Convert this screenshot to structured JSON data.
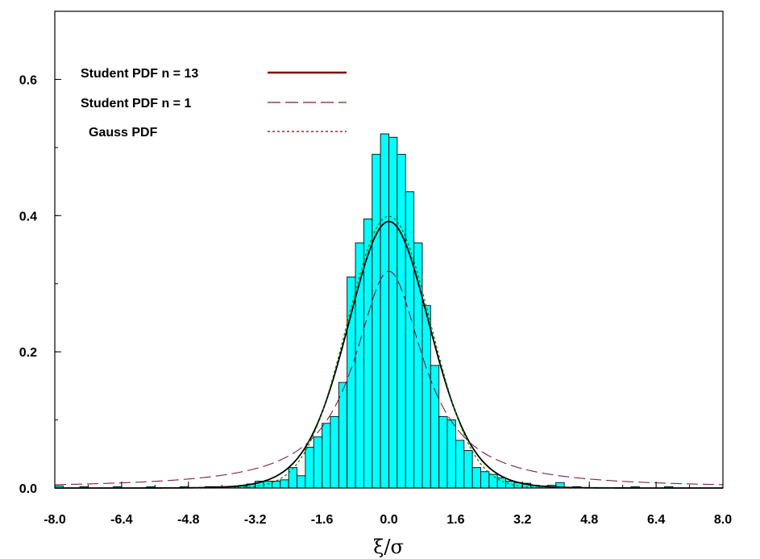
{
  "chart_data": {
    "type": "bar",
    "title": "",
    "xlabel": "ξ/σ",
    "ylabel": "",
    "xlim": [
      -8.0,
      8.0
    ],
    "ylim": [
      0.0,
      0.7
    ],
    "x_ticks": [
      "-8.0",
      "-6.4",
      "-4.8",
      "-3.2",
      "-1.6",
      "0.0",
      "1.6",
      "3.2",
      "4.8",
      "6.4",
      "8.0"
    ],
    "y_ticks": [
      "0.0",
      "0.2",
      "0.4",
      "0.6"
    ],
    "grid": false,
    "legend_position": "top-left",
    "histogram": {
      "color": "#00ffff",
      "bin_width": 0.2,
      "bin_left_edges": [
        -8.0,
        -7.4,
        -6.6,
        -5.8,
        -5.0,
        -4.4,
        -4.2,
        -4.0,
        -3.8,
        -3.6,
        -3.4,
        -3.2,
        -3.0,
        -2.8,
        -2.6,
        -2.4,
        -2.2,
        -2.0,
        -1.8,
        -1.6,
        -1.4,
        -1.2,
        -1.0,
        -0.8,
        -0.6,
        -0.4,
        -0.2,
        0.0,
        0.2,
        0.4,
        0.6,
        0.8,
        1.0,
        1.2,
        1.4,
        1.6,
        1.8,
        2.0,
        2.2,
        2.4,
        2.6,
        2.8,
        3.0,
        3.2,
        3.4,
        3.6,
        3.8,
        4.0,
        4.4,
        5.8,
        6.6
      ],
      "values": [
        0.003,
        0.002,
        0.002,
        0.002,
        0.002,
        0.002,
        0.002,
        0.002,
        0.002,
        0.003,
        0.006,
        0.01,
        0.01,
        0.01,
        0.012,
        0.03,
        0.018,
        0.06,
        0.075,
        0.095,
        0.105,
        0.155,
        0.31,
        0.36,
        0.395,
        0.49,
        0.52,
        0.515,
        0.49,
        0.435,
        0.36,
        0.268,
        0.18,
        0.105,
        0.1,
        0.07,
        0.055,
        0.03,
        0.024,
        0.02,
        0.015,
        0.01,
        0.008,
        0.007,
        0.004,
        0.003,
        0.004,
        0.008,
        0.002,
        0.002,
        0.002
      ]
    },
    "series": [
      {
        "name": "Student PDF n = 13",
        "style": "solid",
        "color": "#000000",
        "legend_color": "#7f0000",
        "distribution": "student_t",
        "n": 13
      },
      {
        "name": "Student PDF n = 1",
        "style": "long-dash",
        "color": "#7f1f3f",
        "legend_color": "#7f1f1f",
        "distribution": "cauchy",
        "n": 1
      },
      {
        "name": "Gauss PDF",
        "style": "dotted",
        "color": "#008000",
        "legend_color": "#7f0000",
        "distribution": "normal"
      }
    ]
  }
}
